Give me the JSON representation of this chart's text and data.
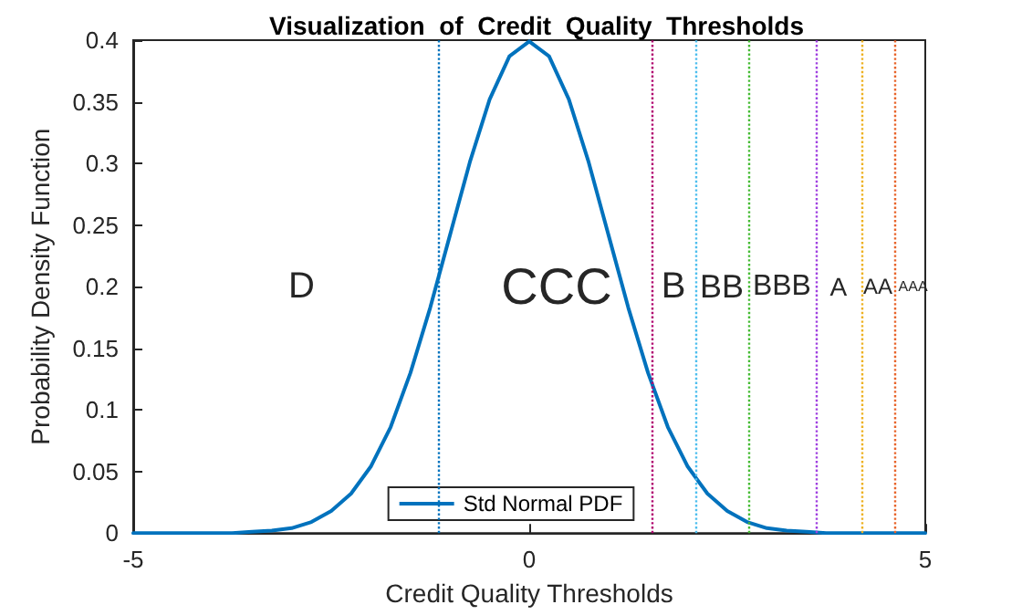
{
  "chart_data": {
    "type": "line",
    "title": "Visualization  of  Credit  Quality  Thresholds",
    "xlabel": "Credit Quality Thresholds",
    "ylabel": "Probability Density Function",
    "x": [
      -5,
      -4.75,
      -4.5,
      -4.25,
      -4,
      -3.75,
      -3.5,
      -3.25,
      -3,
      -2.75,
      -2.5,
      -2.25,
      -2,
      -1.75,
      -1.5,
      -1.25,
      -1,
      -0.75,
      -0.5,
      -0.25,
      0,
      0.25,
      0.5,
      0.75,
      1,
      1.25,
      1.5,
      1.75,
      2,
      2.25,
      2.5,
      2.75,
      3,
      3.25,
      3.5,
      3.75,
      4,
      4.25,
      4.5,
      4.75,
      5
    ],
    "series": [
      {
        "name": "Std Normal PDF",
        "color": "#0072bd",
        "values": [
          0,
          0,
          0,
          0,
          0,
          0,
          0.001,
          0.002,
          0.004,
          0.009,
          0.018,
          0.032,
          0.054,
          0.086,
          0.13,
          0.183,
          0.242,
          0.301,
          0.352,
          0.387,
          0.399,
          0.387,
          0.352,
          0.301,
          0.242,
          0.183,
          0.13,
          0.086,
          0.054,
          0.032,
          0.018,
          0.009,
          0.004,
          0.002,
          0.001,
          0,
          0,
          0,
          0,
          0,
          0
        ]
      }
    ],
    "xlim": [
      -5,
      5
    ],
    "xticks": [
      -5,
      0,
      5
    ],
    "ylim": [
      0,
      0.4
    ],
    "yticks": [
      0,
      0.05,
      0.1,
      0.15,
      0.2,
      0.25,
      0.3,
      0.35,
      0.4
    ],
    "grid": false,
    "legend": "bottom",
    "marker": "none",
    "line_style": "solid",
    "ref_lines": [
      {
        "axis": "x",
        "value": -1.15,
        "color": "#0072bd",
        "line_style": "dotted"
      },
      {
        "axis": "x",
        "value": 1.54,
        "color": "#b0006e",
        "line_style": "dotted"
      },
      {
        "axis": "x",
        "value": 2.1,
        "color": "#4dbeee",
        "line_style": "dotted"
      },
      {
        "axis": "x",
        "value": 2.76,
        "color": "#44bb33",
        "line_style": "dotted"
      },
      {
        "axis": "x",
        "value": 3.62,
        "color": "#a040e0",
        "line_style": "dotted"
      },
      {
        "axis": "x",
        "value": 4.19,
        "color": "#edb120",
        "line_style": "dotted"
      },
      {
        "axis": "x",
        "value": 4.61,
        "color": "#e8642a",
        "line_style": "dotted"
      }
    ],
    "annotations": [
      "D",
      "CCC",
      "B",
      "BB",
      "BBB",
      "A",
      "AA",
      "AAA"
    ]
  }
}
